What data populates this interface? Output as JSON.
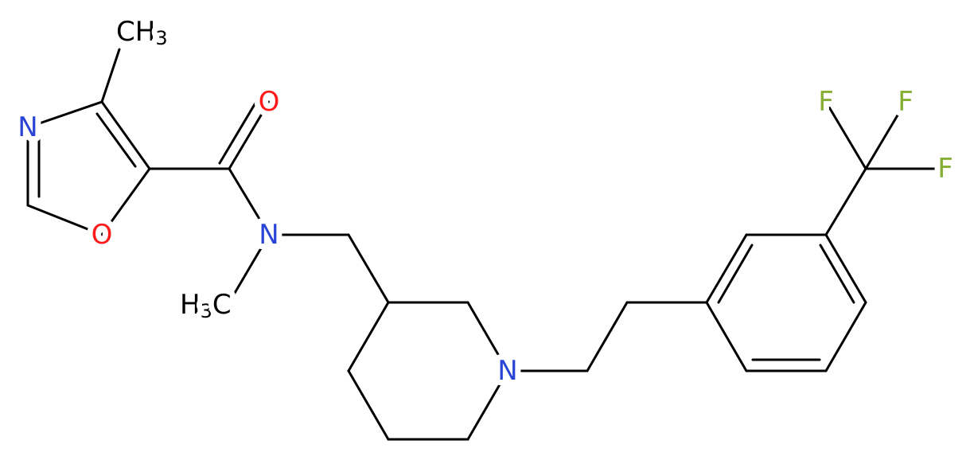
{
  "atoms": [
    {
      "label": "N"
    },
    {
      "label": "O"
    },
    {
      "label": "O"
    },
    {
      "label": "N"
    },
    {
      "label": "N"
    },
    {
      "label": "F"
    },
    {
      "label": "F"
    },
    {
      "label": "F"
    }
  ],
  "methyl_groups": [
    {
      "parts": [
        "CH",
        "3"
      ]
    },
    {
      "parts": [
        "H",
        "3",
        "C"
      ]
    }
  ]
}
